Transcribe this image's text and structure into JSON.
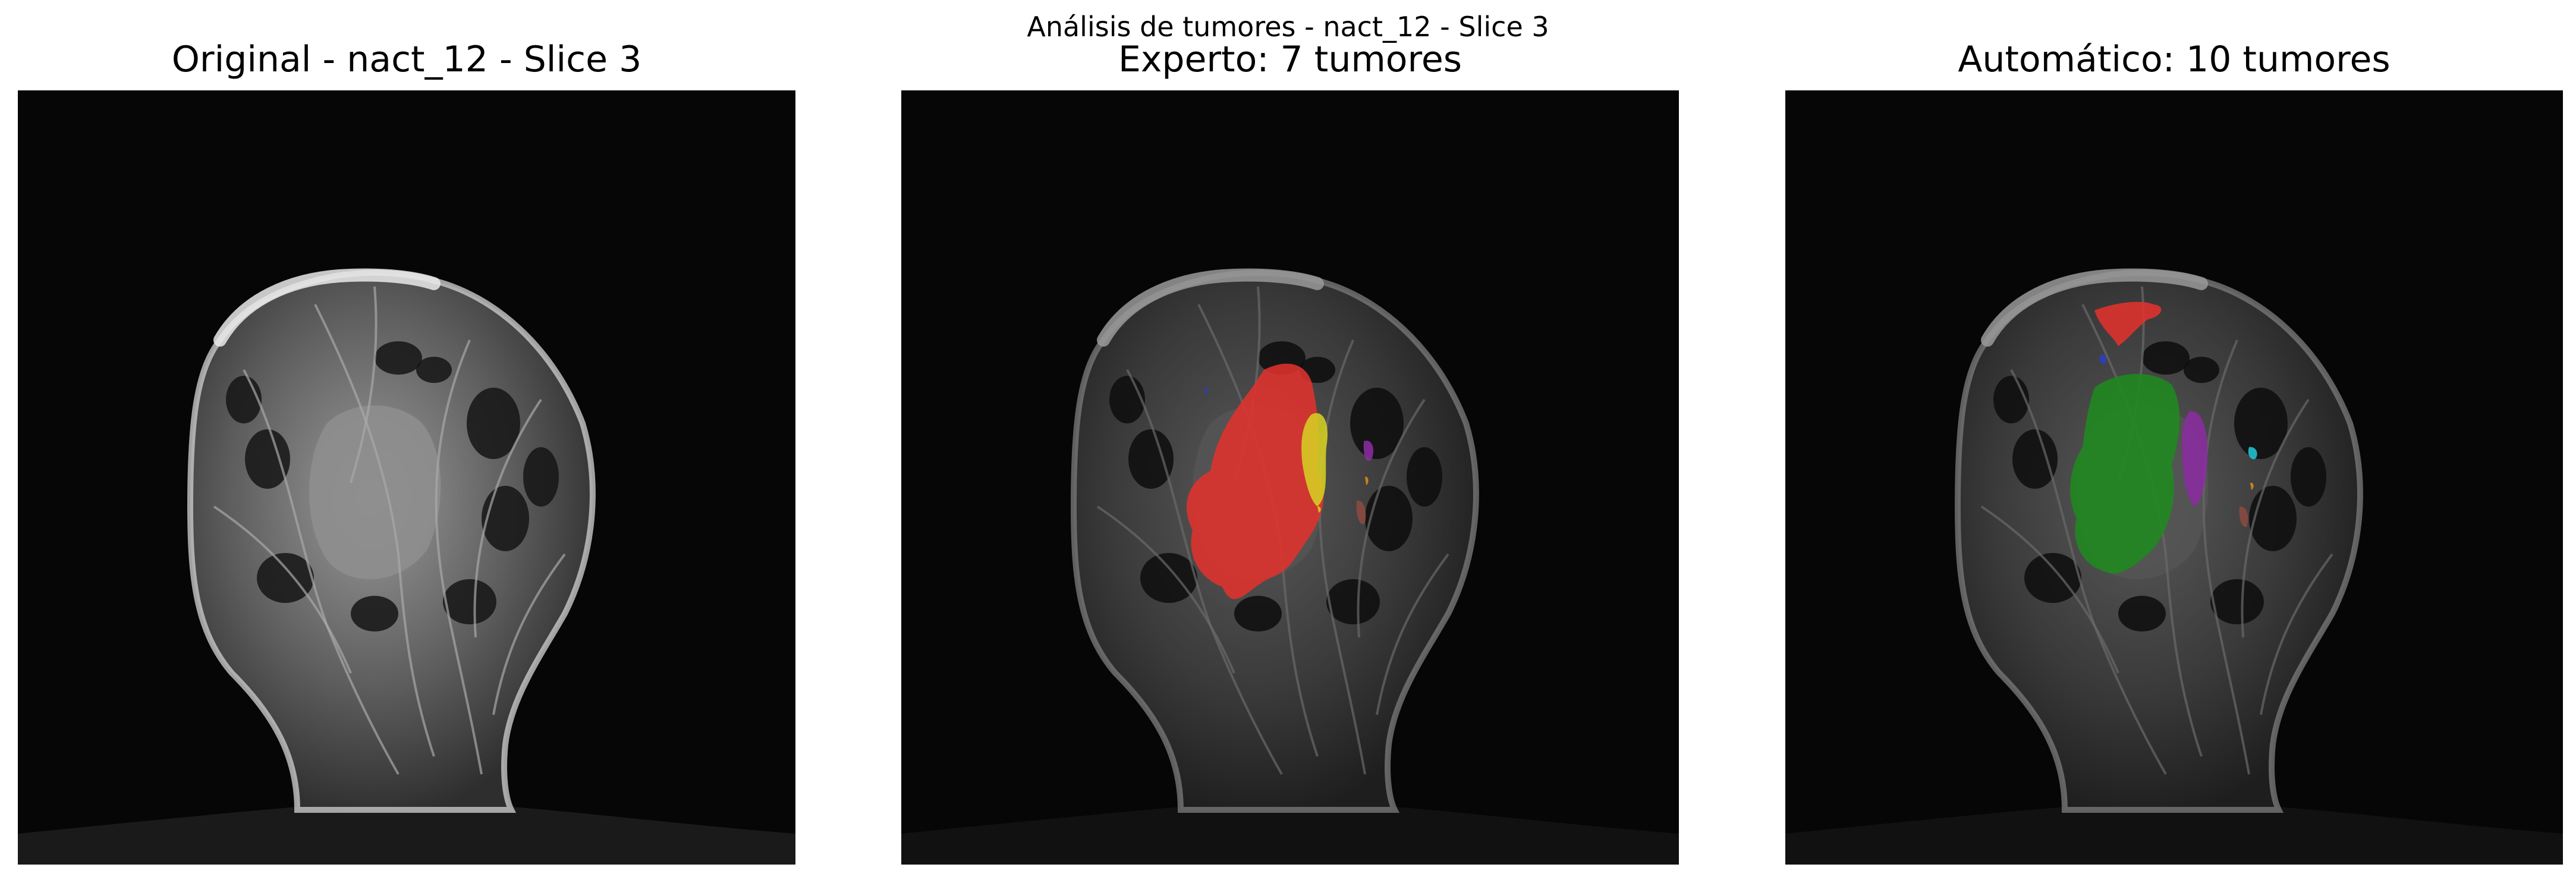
{
  "figure": {
    "suptitle": "Análisis de tumores - nact_12 - Slice 3"
  },
  "panels": [
    {
      "title": "Original - nact_12 - Slice 3",
      "overlay": "none"
    },
    {
      "title": "Experto: 7 tumores",
      "overlay": "expert"
    },
    {
      "title": "Automático: 10 tumores",
      "overlay": "automatic"
    }
  ],
  "colors": {
    "background": "#050505",
    "tissue": "#8a8a8a",
    "red": "#e0322e",
    "yellow": "#d6cf22",
    "purple": "#8a2ca0",
    "brown": "#8a4a42",
    "green": "#1f8a1f",
    "blue": "#2a3fc0",
    "cyan": "#23c4d4",
    "orange": "#d88a1e"
  }
}
